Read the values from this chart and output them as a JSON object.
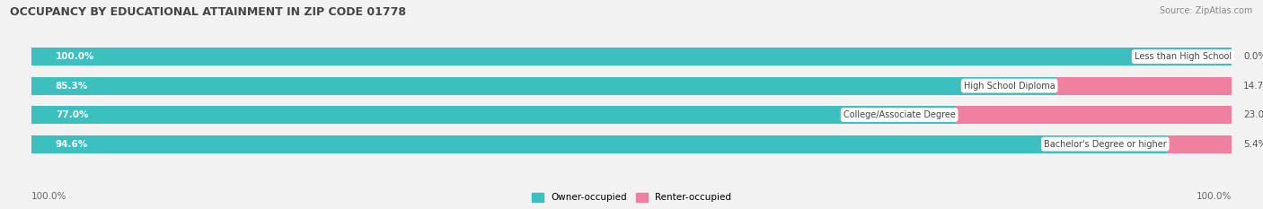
{
  "title": "OCCUPANCY BY EDUCATIONAL ATTAINMENT IN ZIP CODE 01778",
  "source": "Source: ZipAtlas.com",
  "categories": [
    "Less than High School",
    "High School Diploma",
    "College/Associate Degree",
    "Bachelor's Degree or higher"
  ],
  "owner_values": [
    100.0,
    85.3,
    77.0,
    94.6
  ],
  "renter_values": [
    0.0,
    14.7,
    23.0,
    5.4
  ],
  "owner_color": "#3bbfbf",
  "renter_color": "#f080a0",
  "bar_bg_color": "#e0e0e0",
  "bar_outline_color": "#cccccc",
  "title_fontsize": 9,
  "label_fontsize": 7.5,
  "bar_height": 0.62,
  "xlim": [
    0,
    100
  ],
  "legend_owner": "Owner-occupied",
  "legend_renter": "Renter-occupied",
  "left_label": "100.0%",
  "right_label": "100.0%",
  "bg_color": "#f2f2f2"
}
